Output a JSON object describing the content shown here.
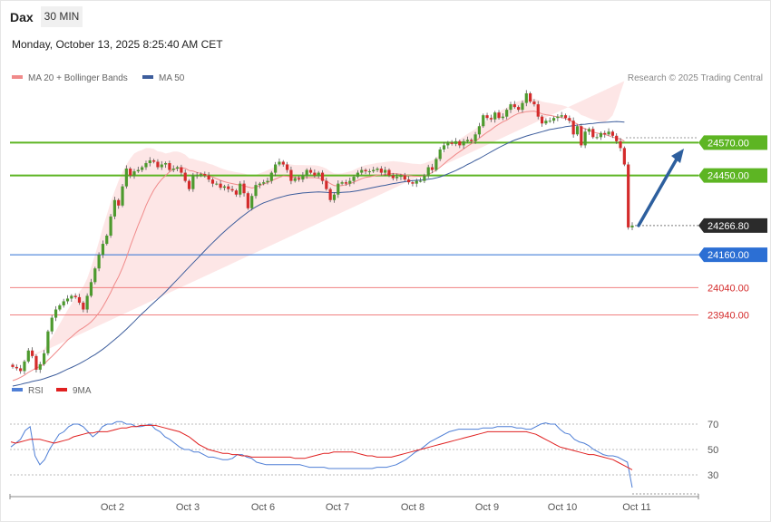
{
  "header": {
    "instrument": "Dax",
    "timeframe": "30 MIN",
    "datetime": "Monday, October 13, 2025 8:25:40 AM CET"
  },
  "legend": {
    "ma20_label": "MA 20 + Bollinger Bands",
    "ma50_label": "MA 50",
    "rsi_label": "RSI",
    "rsi_ma_label": "9MA",
    "credit": "Research © 2025 Trading Central"
  },
  "colors": {
    "up": "#4d9a2e",
    "down": "#d42b2b",
    "ma20": "#f08a8a",
    "ma50": "#3d5d9c",
    "band": "#fde2e2",
    "resistance": "#5db523",
    "support": "#2c6fd4",
    "support_text": "#d42b2b",
    "last": "#2b2b2b",
    "arrow": "#2d5f9e",
    "rsi": "#4f7fd6",
    "rsi_ma": "#e02020"
  },
  "chart_data": [
    {
      "type": "candlestick",
      "title": "Dax 30 MIN",
      "x_ticks": [
        "Oct 2",
        "Oct 3",
        "Oct 6",
        "Oct 7",
        "Oct 8",
        "Oct 9",
        "Oct 10",
        "Oct 11"
      ],
      "ylim": [
        23700,
        24760
      ],
      "levels": [
        {
          "value": 24570.0,
          "label": "24570.00",
          "kind": "resistance"
        },
        {
          "value": 24450.0,
          "label": "24450.00",
          "kind": "resistance"
        },
        {
          "value": 24266.8,
          "label": "24266.80",
          "kind": "last"
        },
        {
          "value": 24160.0,
          "label": "24160.00",
          "kind": "support"
        },
        {
          "value": 24040.0,
          "label": "24040.00",
          "kind": "support_text"
        },
        {
          "value": 23940.0,
          "label": "23940.00",
          "kind": "support_text"
        }
      ],
      "close": [
        23750,
        23745,
        23735,
        23770,
        23810,
        23790,
        23740,
        23760,
        23800,
        23880,
        23930,
        23960,
        23975,
        23990,
        24000,
        24010,
        24005,
        23985,
        23960,
        24010,
        24060,
        24110,
        24160,
        24200,
        24230,
        24300,
        24360,
        24340,
        24410,
        24475,
        24450,
        24465,
        24470,
        24480,
        24495,
        24505,
        24500,
        24480,
        24490,
        24495,
        24470,
        24475,
        24480,
        24460,
        24430,
        24400,
        24450,
        24450,
        24455,
        24450,
        24435,
        24420,
        24420,
        24405,
        24410,
        24400,
        24395,
        24380,
        24420,
        24385,
        24330,
        24375,
        24415,
        24420,
        24425,
        24430,
        24460,
        24490,
        24500,
        24490,
        24470,
        24430,
        24440,
        24435,
        24450,
        24470,
        24460,
        24450,
        24460,
        24430,
        24400,
        24360,
        24380,
        24420,
        24425,
        24420,
        24430,
        24445,
        24460,
        24470,
        24465,
        24465,
        24470,
        24475,
        24460,
        24470,
        24450,
        24440,
        24445,
        24450,
        24435,
        24425,
        24420,
        24430,
        24430,
        24450,
        24480,
        24470,
        24510,
        24545,
        24560,
        24570,
        24565,
        24575,
        24560,
        24575,
        24580,
        24575,
        24600,
        24630,
        24670,
        24660,
        24655,
        24680,
        24660,
        24665,
        24690,
        24710,
        24700,
        24690,
        24715,
        24750,
        24720,
        24710,
        24665,
        24640,
        24650,
        24650,
        24660,
        24665,
        24670,
        24660,
        24650,
        24600,
        24630,
        24560,
        24610,
        24620,
        24590,
        24590,
        24605,
        24600,
        24610,
        24595,
        24575,
        24550,
        24490,
        24260,
        24266.8
      ],
      "ma20": [
        23700,
        23705,
        23712,
        23720,
        23730,
        23738,
        23746,
        23752,
        23760,
        23775,
        23788,
        23803,
        23818,
        23833,
        23848,
        23860,
        23873,
        23885,
        23893,
        23903,
        23915,
        23930,
        23948,
        23970,
        23995,
        24023,
        24053,
        24080,
        24112,
        24150,
        24192,
        24230,
        24268,
        24303,
        24340,
        24370,
        24397,
        24418,
        24436,
        24450,
        24463,
        24472,
        24477,
        24478,
        24476,
        24468,
        24466,
        24461,
        24457,
        24454,
        24448,
        24444,
        24438,
        24432,
        24427,
        24423,
        24420,
        24417,
        24415,
        24412,
        24408,
        24404,
        24407,
        24413,
        24418,
        24424,
        24430,
        24437,
        24443,
        24448,
        24447,
        24445,
        24443,
        24443,
        24443,
        24442,
        24442,
        24442,
        24440,
        24436,
        24430,
        24420,
        24413,
        24412,
        24413,
        24416,
        24420,
        24425,
        24432,
        24438,
        24443,
        24445,
        24448,
        24451,
        24452,
        24454,
        24456,
        24457,
        24456,
        24454,
        24452,
        24450,
        24448,
        24447,
        24446,
        24449,
        24455,
        24460,
        24470,
        24480,
        24492,
        24505,
        24516,
        24527,
        24537,
        24547,
        24557,
        24566,
        24575,
        24586,
        24597,
        24608,
        24617,
        24628,
        24637,
        24646,
        24652,
        24662,
        24670,
        24677,
        24680,
        24683,
        24684,
        24685,
        24681,
        24675,
        24672,
        24670,
        24667,
        24664,
        24662,
        24658,
        24652,
        24644,
        24638,
        24626,
        24621,
        24615,
        24609,
        24605,
        24602,
        24600,
        24595,
        24590,
        24586,
        24583,
        24575
      ],
      "ma50": [
        23680,
        23683,
        23686,
        23690,
        23693,
        23697,
        23700,
        23703,
        23707,
        23712,
        23717,
        23722,
        23728,
        23735,
        23742,
        23748,
        23755,
        23762,
        23770,
        23778,
        23787,
        23795,
        23805,
        23815,
        23826,
        23838,
        23850,
        23862,
        23875,
        23888,
        23902,
        23916,
        23931,
        23945,
        23958,
        23972,
        23985,
        23998,
        24011,
        24025,
        24040,
        24055,
        24070,
        24085,
        24100,
        24115,
        24130,
        24145,
        24160,
        24175,
        24190,
        24204,
        24218,
        24232,
        24245,
        24258,
        24270,
        24282,
        24294,
        24305,
        24316,
        24326,
        24335,
        24343,
        24350,
        24355,
        24360,
        24365,
        24369,
        24373,
        24377,
        24380,
        24382,
        24384,
        24386,
        24387,
        24388,
        24389,
        24390,
        24389,
        24388,
        24387,
        24387,
        24387,
        24388,
        24389,
        24390,
        24392,
        24394,
        24397,
        24400,
        24403,
        24406,
        24409,
        24412,
        24414,
        24417,
        24420,
        24422,
        24425,
        24427,
        24429,
        24431,
        24432,
        24433,
        24434,
        24436,
        24438,
        24441,
        24445,
        24450,
        24456,
        24462,
        24468,
        24475,
        24482,
        24490,
        24497,
        24505,
        24512,
        24520,
        24528,
        24536,
        24544,
        24552,
        24559,
        24566,
        24573,
        24579,
        24584,
        24589,
        24594,
        24598,
        24602,
        24606,
        24610,
        24614,
        24618,
        24620,
        24623,
        24625,
        24628,
        24630,
        24632,
        24634,
        24636,
        24637,
        24639,
        24640,
        24642,
        24643,
        24644,
        24645,
        24646,
        24647,
        24646,
        24645
      ],
      "bb_width": [
        55,
        55,
        55,
        55,
        55,
        55,
        55,
        55,
        55,
        60,
        70,
        80,
        90,
        100,
        110,
        120,
        130,
        140,
        150,
        170,
        200,
        230,
        260,
        290,
        310,
        330,
        340,
        350,
        350,
        340,
        320,
        300,
        270,
        240,
        210,
        180,
        150,
        120,
        100,
        80,
        70,
        65,
        60,
        55,
        50,
        45,
        45,
        45,
        45,
        45,
        45,
        45,
        45,
        45,
        45,
        45,
        45,
        45,
        45,
        45,
        45,
        45,
        45,
        45,
        45,
        45,
        45,
        45,
        45,
        45,
        45,
        45,
        45,
        45,
        45,
        45,
        45,
        45,
        45,
        45,
        45,
        45,
        45,
        45,
        45,
        45,
        45,
        45,
        45,
        45,
        45,
        45,
        45,
        45,
        45,
        45,
        45,
        45,
        45,
        45,
        45,
        45,
        45,
        45,
        45,
        45,
        45,
        45,
        45,
        45,
        45,
        45,
        45,
        45,
        45,
        45,
        45,
        45,
        45,
        45,
        45,
        45,
        45,
        45,
        45,
        45,
        45,
        45,
        45,
        45,
        45,
        45,
        45,
        45,
        45,
        45,
        45,
        45,
        45,
        45,
        45,
        45,
        45,
        45,
        45,
        45,
        45,
        45,
        45,
        45,
        45,
        45,
        60,
        80,
        120,
        170,
        220
      ]
    },
    {
      "type": "line",
      "series": [
        {
          "name": "RSI",
          "values": [
            52,
            55,
            58,
            65,
            68,
            45,
            38,
            42,
            50,
            56,
            62,
            64,
            68,
            70,
            70,
            68,
            64,
            60,
            63,
            68,
            70,
            70,
            72,
            72,
            70,
            70,
            68,
            68,
            69,
            70,
            66,
            64,
            60,
            58,
            55,
            52,
            50,
            50,
            48,
            48,
            46,
            44,
            44,
            43,
            42,
            42,
            43,
            46,
            46,
            44,
            43,
            40,
            39,
            38,
            38,
            38,
            38,
            38,
            38,
            38,
            38,
            37,
            36,
            36,
            36,
            36,
            35,
            35,
            35,
            35,
            35,
            35,
            35,
            35,
            35,
            35,
            36,
            36,
            36,
            37,
            38,
            40,
            42,
            45,
            48,
            50,
            53,
            56,
            58,
            60,
            62,
            64,
            65,
            66,
            66,
            66,
            66,
            66,
            67,
            67,
            67,
            68,
            68,
            68,
            68,
            67,
            67,
            66,
            66,
            68,
            70,
            71,
            70,
            70,
            66,
            63,
            62,
            58,
            56,
            55,
            53,
            50,
            48,
            46,
            45,
            45,
            44,
            42,
            40,
            20
          ]
        },
        {
          "name": "9MA",
          "values": [
            56,
            55,
            56,
            57,
            58,
            58,
            58,
            57,
            56,
            55,
            56,
            57,
            58,
            60,
            61,
            62,
            63,
            63,
            64,
            64,
            64,
            65,
            66,
            67,
            67,
            68,
            68,
            69,
            69,
            69,
            69,
            68,
            67,
            66,
            65,
            64,
            62,
            60,
            57,
            54,
            52,
            50,
            49,
            48,
            47,
            47,
            46,
            46,
            45,
            45,
            44,
            44,
            44,
            44,
            44,
            44,
            44,
            44,
            44,
            43,
            43,
            43,
            44,
            45,
            46,
            47,
            47,
            48,
            48,
            48,
            48,
            48,
            47,
            46,
            45,
            45,
            44,
            44,
            44,
            44,
            45,
            46,
            47,
            48,
            49,
            50,
            51,
            52,
            53,
            54,
            55,
            56,
            57,
            58,
            59,
            60,
            61,
            62,
            63,
            64,
            64,
            64,
            64,
            64,
            64,
            64,
            64,
            64,
            63,
            62,
            60,
            58,
            56,
            54,
            52,
            51,
            50,
            49,
            48,
            47,
            46,
            46,
            45,
            44,
            43,
            42,
            40,
            38,
            36,
            34
          ]
        }
      ],
      "y_ticks": [
        70,
        50,
        30
      ],
      "ylim": [
        15,
        90
      ]
    }
  ]
}
